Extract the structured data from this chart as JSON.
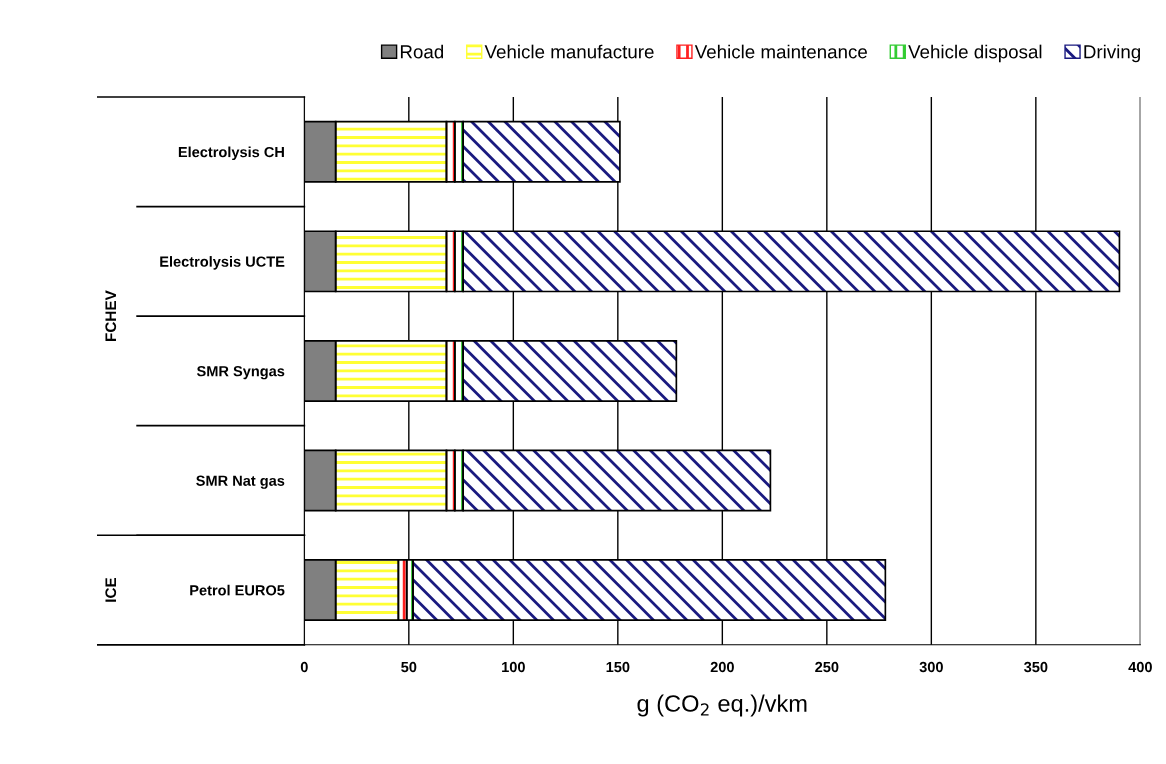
{
  "chart_data": {
    "type": "bar",
    "orientation": "horizontal",
    "stacked": true,
    "categories": [
      "Electrolysis CH",
      "Electrolysis UCTE",
      "SMR Syngas",
      "SMR Nat gas",
      "Petrol EURO5"
    ],
    "series": [
      {
        "name": "Road",
        "color": "#808080",
        "values": [
          15,
          15,
          15,
          15,
          15
        ]
      },
      {
        "name": "Vehicle manufacture",
        "color": "#ffff33",
        "values": [
          53,
          53,
          53,
          53,
          30
        ]
      },
      {
        "name": "Vehicle maintenance",
        "color": "#ff2020",
        "values": [
          4,
          4,
          4,
          4,
          4
        ]
      },
      {
        "name": "Vehicle disposal",
        "color": "#33cc33",
        "values": [
          4,
          4,
          4,
          4,
          3
        ]
      },
      {
        "name": "Driving",
        "color": "#1a1a80",
        "values": [
          75,
          314,
          102,
          147,
          226
        ]
      }
    ],
    "xlim": [
      0,
      400
    ],
    "xticks": [
      0,
      50,
      100,
      150,
      200,
      250,
      300,
      350,
      400
    ],
    "xlabel": "g (CO$_{2}$ eq.)/vkm",
    "annotations": [
      "FCHEV",
      "ICE"
    ],
    "grid": "x",
    "legend": "top right"
  }
}
